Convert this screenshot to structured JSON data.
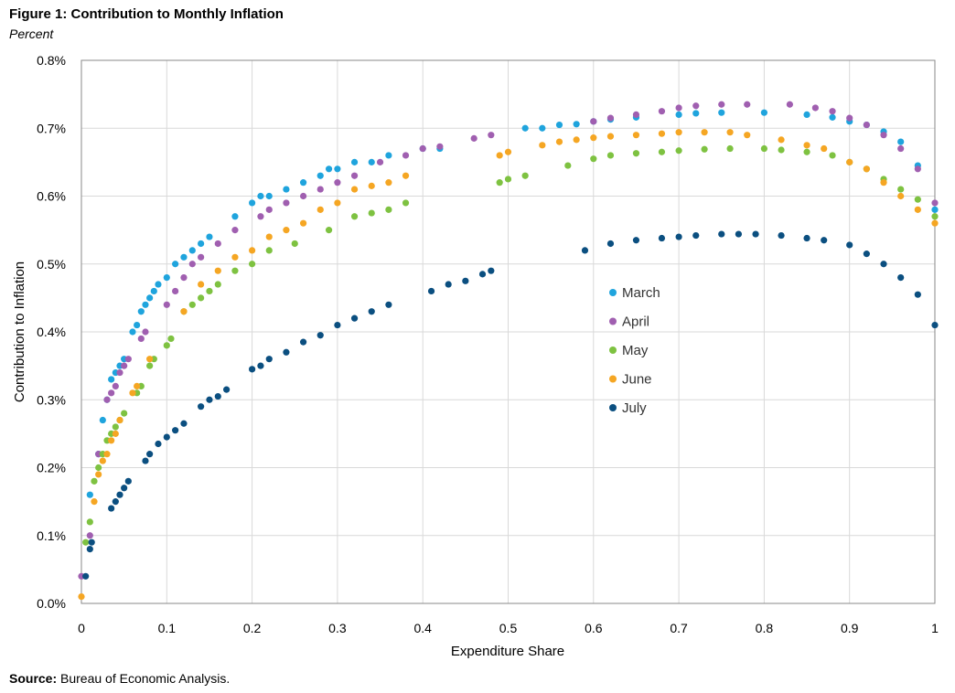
{
  "figure": {
    "title": "Figure 1: Contribution to Monthly Inflation",
    "subtitle": "Percent",
    "source_label": "Source:",
    "source_text": "Bureau of Economic Analysis."
  },
  "chart_data": {
    "type": "scatter",
    "title": "Figure 1: Contribution to Monthly Inflation",
    "subtitle": "Percent",
    "xlabel": "Expenditure Share",
    "ylabel": "Contribution to Inflation",
    "xlim": [
      0,
      1
    ],
    "ylim": [
      0,
      0.8
    ],
    "x_ticks": [
      0,
      0.1,
      0.2,
      0.3,
      0.4,
      0.5,
      0.6,
      0.7,
      0.8,
      0.9,
      1
    ],
    "x_tick_labels": [
      "0",
      "0.1",
      "0.2",
      "0.3",
      "0.4",
      "0.5",
      "0.6",
      "0.7",
      "0.8",
      "0.9",
      "1"
    ],
    "y_ticks": [
      0,
      0.1,
      0.2,
      0.3,
      0.4,
      0.5,
      0.6,
      0.7,
      0.8
    ],
    "y_tick_labels": [
      "0.0%",
      "0.1%",
      "0.2%",
      "0.3%",
      "0.4%",
      "0.5%",
      "0.6%",
      "0.7%",
      "0.8%"
    ],
    "grid": true,
    "legend_position": "center-right",
    "series": [
      {
        "name": "March",
        "color": "#1fa4dd",
        "x": [
          0.01,
          0.02,
          0.025,
          0.03,
          0.035,
          0.04,
          0.045,
          0.05,
          0.06,
          0.065,
          0.07,
          0.075,
          0.08,
          0.085,
          0.09,
          0.1,
          0.11,
          0.12,
          0.13,
          0.14,
          0.15,
          0.18,
          0.2,
          0.21,
          0.22,
          0.24,
          0.26,
          0.28,
          0.29,
          0.3,
          0.32,
          0.34,
          0.36,
          0.4,
          0.42,
          0.52,
          0.54,
          0.56,
          0.58,
          0.6,
          0.62,
          0.65,
          0.7,
          0.72,
          0.75,
          0.8,
          0.85,
          0.88,
          0.9,
          0.92,
          0.94,
          0.96,
          0.98,
          1.0
        ],
        "y": [
          0.16,
          0.22,
          0.27,
          0.3,
          0.33,
          0.34,
          0.35,
          0.36,
          0.4,
          0.41,
          0.43,
          0.44,
          0.45,
          0.46,
          0.47,
          0.48,
          0.5,
          0.51,
          0.52,
          0.53,
          0.54,
          0.57,
          0.59,
          0.6,
          0.6,
          0.61,
          0.62,
          0.63,
          0.64,
          0.64,
          0.65,
          0.65,
          0.66,
          0.67,
          0.67,
          0.7,
          0.7,
          0.705,
          0.706,
          0.71,
          0.713,
          0.716,
          0.72,
          0.722,
          0.723,
          0.723,
          0.72,
          0.716,
          0.71,
          0.705,
          0.695,
          0.68,
          0.645,
          0.58
        ]
      },
      {
        "name": "April",
        "color": "#a05fb0",
        "x": [
          0.0,
          0.01,
          0.02,
          0.03,
          0.035,
          0.04,
          0.045,
          0.05,
          0.055,
          0.07,
          0.075,
          0.1,
          0.11,
          0.12,
          0.13,
          0.14,
          0.16,
          0.18,
          0.21,
          0.22,
          0.24,
          0.26,
          0.28,
          0.3,
          0.32,
          0.35,
          0.38,
          0.4,
          0.42,
          0.46,
          0.48,
          0.6,
          0.62,
          0.65,
          0.68,
          0.7,
          0.72,
          0.75,
          0.78,
          0.83,
          0.86,
          0.88,
          0.9,
          0.92,
          0.94,
          0.96,
          0.98,
          1.0
        ],
        "y": [
          0.04,
          0.1,
          0.22,
          0.3,
          0.31,
          0.32,
          0.34,
          0.35,
          0.36,
          0.39,
          0.4,
          0.44,
          0.46,
          0.48,
          0.5,
          0.51,
          0.53,
          0.55,
          0.57,
          0.58,
          0.59,
          0.6,
          0.61,
          0.62,
          0.63,
          0.65,
          0.66,
          0.67,
          0.673,
          0.685,
          0.69,
          0.71,
          0.715,
          0.72,
          0.725,
          0.73,
          0.733,
          0.735,
          0.735,
          0.735,
          0.73,
          0.725,
          0.715,
          0.705,
          0.69,
          0.67,
          0.64,
          0.59
        ]
      },
      {
        "name": "May",
        "color": "#7ec241",
        "x": [
          0.005,
          0.01,
          0.015,
          0.02,
          0.025,
          0.03,
          0.035,
          0.04,
          0.045,
          0.05,
          0.065,
          0.07,
          0.08,
          0.085,
          0.1,
          0.105,
          0.12,
          0.13,
          0.14,
          0.15,
          0.16,
          0.18,
          0.2,
          0.22,
          0.25,
          0.29,
          0.32,
          0.34,
          0.36,
          0.38,
          0.49,
          0.5,
          0.52,
          0.57,
          0.6,
          0.62,
          0.65,
          0.68,
          0.7,
          0.73,
          0.76,
          0.8,
          0.82,
          0.85,
          0.88,
          0.9,
          0.92,
          0.94,
          0.96,
          0.98,
          1.0
        ],
        "y": [
          0.09,
          0.12,
          0.18,
          0.2,
          0.22,
          0.24,
          0.25,
          0.26,
          0.27,
          0.28,
          0.31,
          0.32,
          0.35,
          0.36,
          0.38,
          0.39,
          0.43,
          0.44,
          0.45,
          0.46,
          0.47,
          0.49,
          0.5,
          0.52,
          0.53,
          0.55,
          0.57,
          0.575,
          0.58,
          0.59,
          0.62,
          0.625,
          0.63,
          0.645,
          0.655,
          0.66,
          0.663,
          0.665,
          0.667,
          0.669,
          0.67,
          0.67,
          0.668,
          0.665,
          0.66,
          0.65,
          0.64,
          0.625,
          0.61,
          0.595,
          0.57
        ]
      },
      {
        "name": "June",
        "color": "#f5a623",
        "x": [
          0.0,
          0.015,
          0.02,
          0.025,
          0.03,
          0.035,
          0.04,
          0.045,
          0.06,
          0.065,
          0.08,
          0.12,
          0.14,
          0.16,
          0.18,
          0.2,
          0.22,
          0.24,
          0.26,
          0.28,
          0.3,
          0.32,
          0.34,
          0.36,
          0.38,
          0.49,
          0.5,
          0.54,
          0.56,
          0.58,
          0.6,
          0.62,
          0.65,
          0.68,
          0.7,
          0.73,
          0.76,
          0.78,
          0.82,
          0.85,
          0.87,
          0.9,
          0.92,
          0.94,
          0.96,
          0.98,
          1.0
        ],
        "y": [
          0.01,
          0.15,
          0.19,
          0.21,
          0.22,
          0.24,
          0.25,
          0.27,
          0.31,
          0.32,
          0.36,
          0.43,
          0.47,
          0.49,
          0.51,
          0.52,
          0.54,
          0.55,
          0.56,
          0.58,
          0.59,
          0.61,
          0.615,
          0.62,
          0.63,
          0.66,
          0.665,
          0.675,
          0.68,
          0.683,
          0.686,
          0.688,
          0.69,
          0.692,
          0.694,
          0.694,
          0.694,
          0.69,
          0.683,
          0.675,
          0.67,
          0.65,
          0.64,
          0.62,
          0.6,
          0.58,
          0.56
        ]
      },
      {
        "name": "July",
        "color": "#0b4f80",
        "x": [
          0.005,
          0.01,
          0.012,
          0.035,
          0.04,
          0.045,
          0.05,
          0.055,
          0.075,
          0.08,
          0.09,
          0.1,
          0.11,
          0.12,
          0.14,
          0.15,
          0.16,
          0.17,
          0.2,
          0.21,
          0.22,
          0.24,
          0.26,
          0.28,
          0.3,
          0.32,
          0.34,
          0.36,
          0.41,
          0.43,
          0.45,
          0.47,
          0.48,
          0.59,
          0.62,
          0.65,
          0.68,
          0.7,
          0.72,
          0.75,
          0.77,
          0.79,
          0.82,
          0.85,
          0.87,
          0.9,
          0.92,
          0.94,
          0.96,
          0.98,
          1.0
        ],
        "y": [
          0.04,
          0.08,
          0.09,
          0.14,
          0.15,
          0.16,
          0.17,
          0.18,
          0.21,
          0.22,
          0.235,
          0.245,
          0.255,
          0.265,
          0.29,
          0.3,
          0.305,
          0.315,
          0.345,
          0.35,
          0.36,
          0.37,
          0.385,
          0.395,
          0.41,
          0.42,
          0.43,
          0.44,
          0.46,
          0.47,
          0.475,
          0.485,
          0.49,
          0.52,
          0.53,
          0.535,
          0.538,
          0.54,
          0.542,
          0.544,
          0.544,
          0.544,
          0.542,
          0.538,
          0.535,
          0.528,
          0.515,
          0.5,
          0.48,
          0.455,
          0.41
        ]
      }
    ]
  }
}
